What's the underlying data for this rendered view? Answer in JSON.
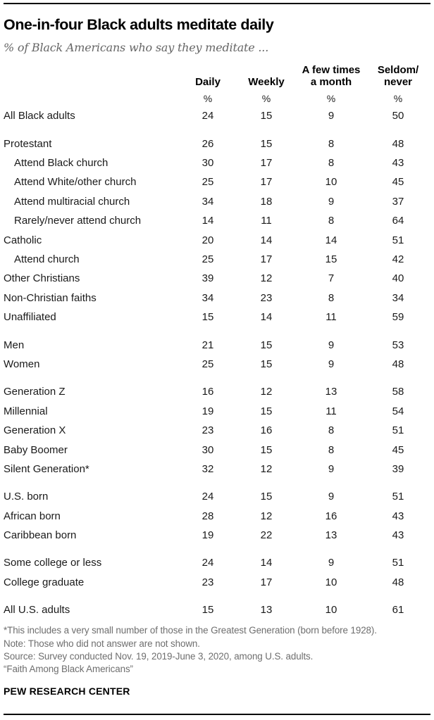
{
  "chart_data": {
    "type": "table",
    "title": "One-in-four Black adults meditate daily",
    "subtitle": "% of Black Americans who say they meditate ...",
    "columns": [
      "Daily",
      "Weekly",
      "A few times\na month",
      "Seldom/\nnever"
    ],
    "unit": "%",
    "groups": [
      {
        "rows": [
          {
            "label": "All Black adults",
            "indent": false,
            "values": [
              "24",
              "15",
              "9",
              "50"
            ]
          }
        ]
      },
      {
        "rows": [
          {
            "label": "Protestant",
            "indent": false,
            "values": [
              "26",
              "15",
              "8",
              "48"
            ]
          },
          {
            "label": "Attend Black church",
            "indent": true,
            "values": [
              "30",
              "17",
              "8",
              "43"
            ]
          },
          {
            "label": "Attend White/other church",
            "indent": true,
            "values": [
              "25",
              "17",
              "10",
              "45"
            ]
          },
          {
            "label": "Attend multiracial church",
            "indent": true,
            "values": [
              "34",
              "18",
              "9",
              "37"
            ]
          },
          {
            "label": "Rarely/never attend church",
            "indent": true,
            "values": [
              "14",
              "11",
              "8",
              "64"
            ]
          },
          {
            "label": "Catholic",
            "indent": false,
            "values": [
              "20",
              "14",
              "14",
              "51"
            ]
          },
          {
            "label": "Attend church",
            "indent": true,
            "values": [
              "25",
              "17",
              "15",
              "42"
            ]
          },
          {
            "label": "Other Christians",
            "indent": false,
            "values": [
              "39",
              "12",
              "7",
              "40"
            ]
          },
          {
            "label": "Non-Christian faiths",
            "indent": false,
            "values": [
              "34",
              "23",
              "8",
              "34"
            ]
          },
          {
            "label": "Unaffiliated",
            "indent": false,
            "values": [
              "15",
              "14",
              "11",
              "59"
            ]
          }
        ]
      },
      {
        "rows": [
          {
            "label": "Men",
            "indent": false,
            "values": [
              "21",
              "15",
              "9",
              "53"
            ]
          },
          {
            "label": "Women",
            "indent": false,
            "values": [
              "25",
              "15",
              "9",
              "48"
            ]
          }
        ]
      },
      {
        "rows": [
          {
            "label": "Generation Z",
            "indent": false,
            "values": [
              "16",
              "12",
              "13",
              "58"
            ]
          },
          {
            "label": "Millennial",
            "indent": false,
            "values": [
              "19",
              "15",
              "11",
              "54"
            ]
          },
          {
            "label": "Generation X",
            "indent": false,
            "values": [
              "23",
              "16",
              "8",
              "51"
            ]
          },
          {
            "label": "Baby Boomer",
            "indent": false,
            "values": [
              "30",
              "15",
              "8",
              "45"
            ]
          },
          {
            "label": "Silent Generation*",
            "indent": false,
            "values": [
              "32",
              "12",
              "9",
              "39"
            ]
          }
        ]
      },
      {
        "rows": [
          {
            "label": "U.S. born",
            "indent": false,
            "values": [
              "24",
              "15",
              "9",
              "51"
            ]
          },
          {
            "label": "African born",
            "indent": false,
            "values": [
              "28",
              "12",
              "16",
              "43"
            ]
          },
          {
            "label": "Caribbean born",
            "indent": false,
            "values": [
              "19",
              "22",
              "13",
              "43"
            ]
          }
        ]
      },
      {
        "rows": [
          {
            "label": "Some college or less",
            "indent": false,
            "values": [
              "24",
              "14",
              "9",
              "51"
            ]
          },
          {
            "label": "College graduate",
            "indent": false,
            "values": [
              "23",
              "17",
              "10",
              "48"
            ]
          }
        ]
      },
      {
        "rows": [
          {
            "label": "All U.S. adults",
            "indent": false,
            "values": [
              "15",
              "13",
              "10",
              "61"
            ]
          }
        ]
      }
    ],
    "notes": [
      "*This includes a very small number of those in the Greatest Generation (born before 1928).",
      "Note: Those who did not answer are not shown.",
      "Source: Survey conducted Nov. 19, 2019-June 3, 2020, among U.S. adults.",
      "“Faith Among Black Americans”"
    ],
    "brand": "PEW RESEARCH CENTER"
  }
}
